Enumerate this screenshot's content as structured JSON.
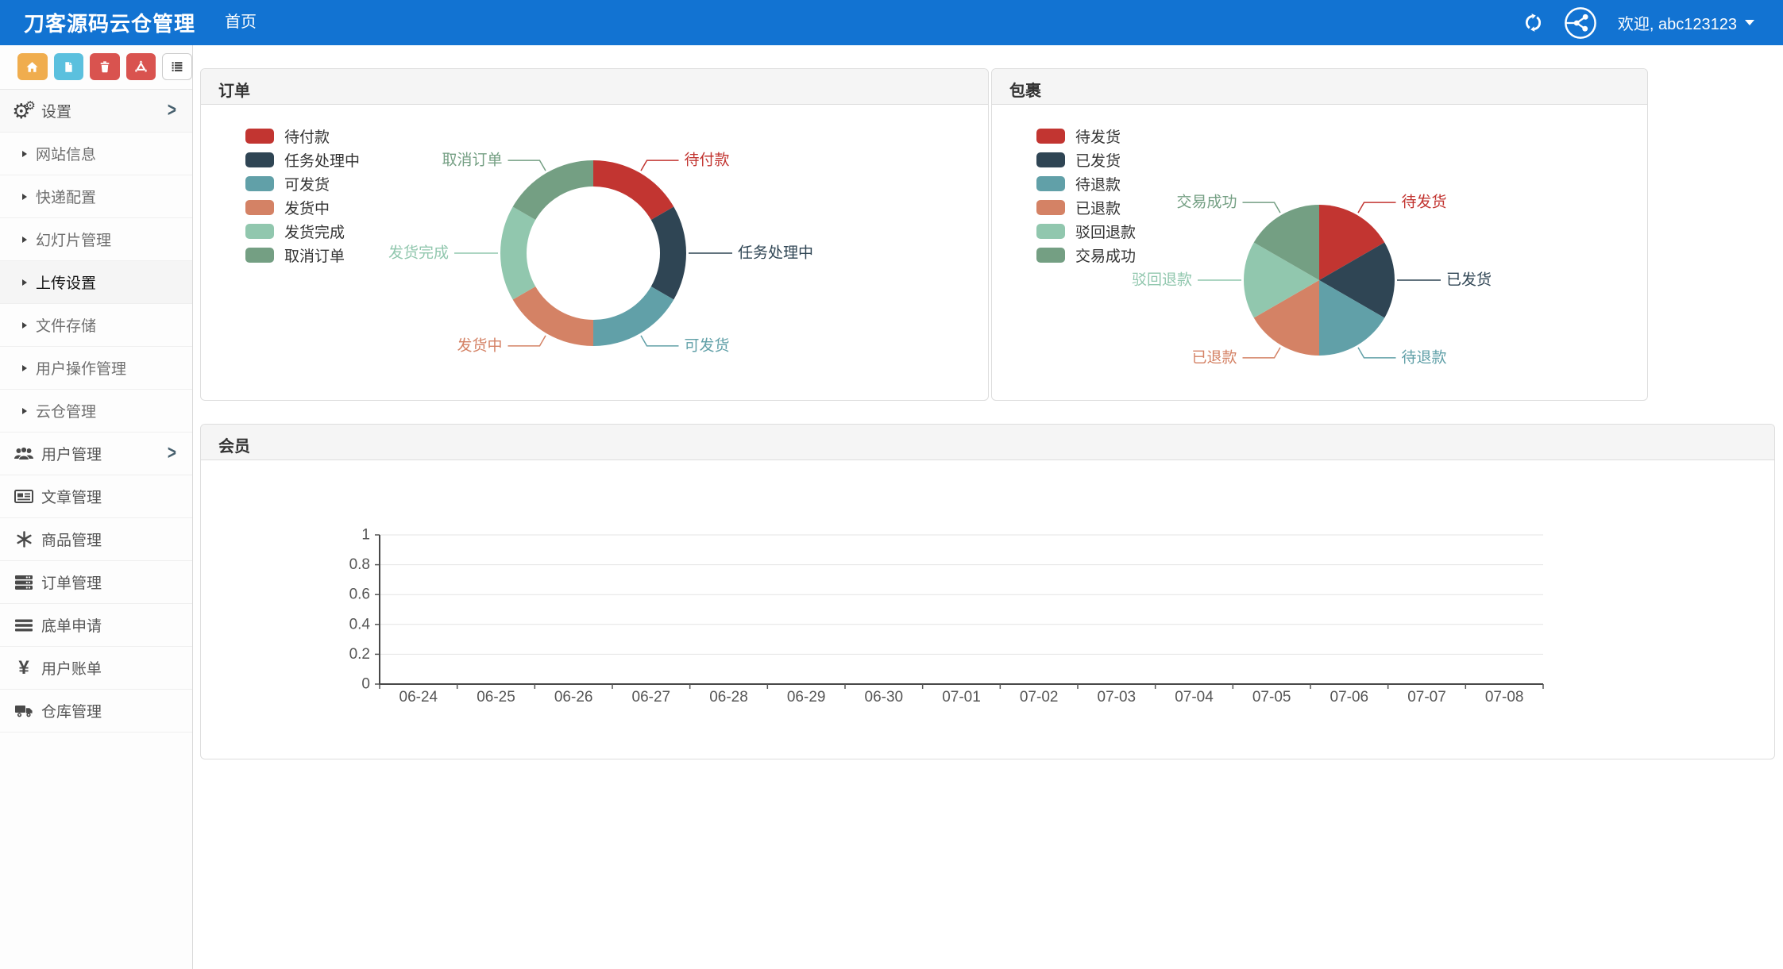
{
  "topbar": {
    "brand": "刀客源码云仓管理",
    "nav_home": "首页",
    "welcome": "欢迎, abc123123"
  },
  "theme": {
    "topbar_blue": "#1273d2",
    "panel_header_bg": "#f5f5f5",
    "palette": [
      "#c23531",
      "#2f4554",
      "#61a0a8",
      "#d48265",
      "#91c7ae",
      "#749f83"
    ]
  },
  "sidebar": {
    "toolbar": [
      {
        "name": "home-button",
        "color": "#f0ad4e"
      },
      {
        "name": "file-button",
        "color": "#5bc0de"
      },
      {
        "name": "trash-button",
        "color": "#d9534f"
      },
      {
        "name": "recycle-button",
        "color": "#d9534f"
      },
      {
        "name": "list-button",
        "color": "#ffffff"
      }
    ],
    "items": [
      {
        "label": "设置",
        "type": "group",
        "icon": "gears"
      },
      {
        "label": "网站信息",
        "type": "sub"
      },
      {
        "label": "快递配置",
        "type": "sub"
      },
      {
        "label": "幻灯片管理",
        "type": "sub"
      },
      {
        "label": "上传设置",
        "type": "sub",
        "active": true
      },
      {
        "label": "文件存储",
        "type": "sub"
      },
      {
        "label": "用户操作管理",
        "type": "sub"
      },
      {
        "label": "云仓管理",
        "type": "sub"
      },
      {
        "label": "用户管理",
        "type": "group",
        "icon": "users"
      },
      {
        "label": "文章管理",
        "type": "item",
        "icon": "newspaper"
      },
      {
        "label": "商品管理",
        "type": "item",
        "icon": "snowflake"
      },
      {
        "label": "订单管理",
        "type": "item",
        "icon": "server"
      },
      {
        "label": "底单申请",
        "type": "item",
        "icon": "bars"
      },
      {
        "label": "用户账单",
        "type": "item",
        "icon": "yen"
      },
      {
        "label": "仓库管理",
        "type": "item",
        "icon": "truck"
      }
    ]
  },
  "panels": {
    "orders": {
      "title": "订单"
    },
    "packages": {
      "title": "包裹"
    },
    "members": {
      "title": "会员"
    }
  },
  "chart_data": [
    {
      "type": "pie",
      "title": "订单",
      "donut": true,
      "labels": [
        "待付款",
        "任务处理中",
        "可发货",
        "发货中",
        "发货完成",
        "取消订单"
      ],
      "values": [
        1,
        1,
        1,
        1,
        1,
        1
      ],
      "colors": [
        "#c23531",
        "#2f4554",
        "#61a0a8",
        "#d48265",
        "#91c7ae",
        "#749f83"
      ],
      "legend_position": "left"
    },
    {
      "type": "pie",
      "title": "包裹",
      "donut": false,
      "labels": [
        "待发货",
        "已发货",
        "待退款",
        "已退款",
        "驳回退款",
        "交易成功"
      ],
      "values": [
        1,
        1,
        1,
        1,
        1,
        1
      ],
      "colors": [
        "#c23531",
        "#2f4554",
        "#61a0a8",
        "#d48265",
        "#91c7ae",
        "#749f83"
      ],
      "legend_position": "left"
    },
    {
      "type": "line",
      "title": "会员",
      "categories": [
        "06-24",
        "06-25",
        "06-26",
        "06-27",
        "06-28",
        "06-29",
        "06-30",
        "07-01",
        "07-02",
        "07-03",
        "07-04",
        "07-05",
        "07-06",
        "07-07",
        "07-08"
      ],
      "series": [],
      "xlabel": "",
      "ylabel": "",
      "ylim": [
        0,
        1
      ],
      "yticks": [
        0,
        0.2,
        0.4,
        0.6,
        0.8,
        1
      ],
      "grid": true
    }
  ]
}
